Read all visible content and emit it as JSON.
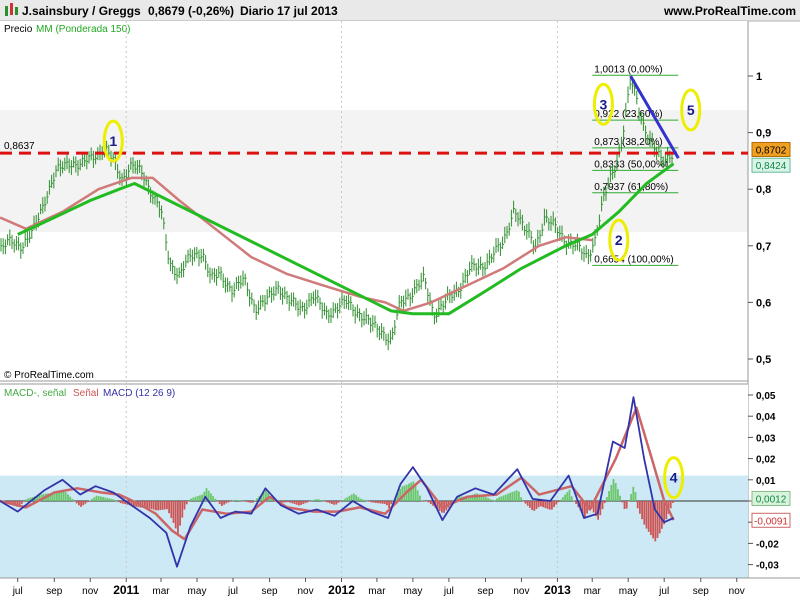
{
  "header": {
    "instrument": "J.sainsbury / Greggs",
    "price": "0,8679 (-0,26%)",
    "period": "Diario",
    "date": "17 jul 2013",
    "website": "www.ProRealTime.com"
  },
  "copyright": "© ProRealTime.com",
  "colors": {
    "price_bars": "#2f8f2f",
    "ma150": "#d07a7a",
    "ma_green": "#22bb22",
    "macd_line": "#3333aa",
    "signal_line": "#cc6666",
    "histogram_pos": "#6cc66c",
    "histogram_neg": "#cc5555",
    "resistance": "#dd1111",
    "trendline": "#3333cc",
    "ellipse": "#eeee00",
    "macd_band": "#cde9f6"
  },
  "chart_data": [
    {
      "type": "line",
      "panel": "price",
      "legend": {
        "prefix": "Precio",
        "ma_label": "MM (Ponderada 150)"
      },
      "x_labels": [
        "jul",
        "sep",
        "nov",
        "2011",
        "mar",
        "may",
        "jul",
        "sep",
        "nov",
        "2012",
        "mar",
        "may",
        "jul",
        "sep",
        "nov",
        "2013",
        "mar",
        "may",
        "jul",
        "sep",
        "nov"
      ],
      "y_ticks": [
        "1",
        "0,9",
        "0,8",
        "0,7",
        "0,6",
        "0,5"
      ],
      "ylim": [
        0.5,
        1.05
      ],
      "price_path": [
        [
          "2010-06-01",
          0.69
        ],
        [
          "2010-06-20",
          0.71
        ],
        [
          "2010-07-10",
          0.7
        ],
        [
          "2010-07-25",
          0.72
        ],
        [
          "2010-08-15",
          0.78
        ],
        [
          "2010-09-05",
          0.83
        ],
        [
          "2010-09-25",
          0.85
        ],
        [
          "2010-10-15",
          0.84
        ],
        [
          "2010-11-05",
          0.86
        ],
        [
          "2010-11-25",
          0.87
        ],
        [
          "2010-12-10",
          0.85
        ],
        [
          "2010-12-25",
          0.82
        ],
        [
          "2011-01-10",
          0.84
        ],
        [
          "2011-01-28",
          0.83
        ],
        [
          "2011-02-15",
          0.79
        ],
        [
          "2011-03-01",
          0.76
        ],
        [
          "2011-03-15",
          0.67
        ],
        [
          "2011-04-01",
          0.65
        ],
        [
          "2011-04-20",
          0.68
        ],
        [
          "2011-05-10",
          0.69
        ],
        [
          "2011-05-25",
          0.64
        ],
        [
          "2011-06-10",
          0.65
        ],
        [
          "2011-07-01",
          0.62
        ],
        [
          "2011-07-20",
          0.64
        ],
        [
          "2011-08-08",
          0.59
        ],
        [
          "2011-08-25",
          0.6
        ],
        [
          "2011-09-15",
          0.63
        ],
        [
          "2011-10-05",
          0.6
        ],
        [
          "2011-10-25",
          0.59
        ],
        [
          "2011-11-15",
          0.61
        ],
        [
          "2011-12-05",
          0.58
        ],
        [
          "2012-01-10",
          0.6
        ],
        [
          "2012-02-01",
          0.58
        ],
        [
          "2012-02-20",
          0.56
        ],
        [
          "2012-03-10",
          0.55
        ],
        [
          "2012-03-25",
          0.53
        ],
        [
          "2012-04-10",
          0.6
        ],
        [
          "2012-05-01",
          0.62
        ],
        [
          "2012-05-20",
          0.64
        ],
        [
          "2012-06-05",
          0.58
        ],
        [
          "2012-06-25",
          0.6
        ],
        [
          "2012-07-15",
          0.62
        ],
        [
          "2012-08-05",
          0.66
        ],
        [
          "2012-08-25",
          0.66
        ],
        [
          "2012-09-15",
          0.69
        ],
        [
          "2012-10-01",
          0.7
        ],
        [
          "2012-10-20",
          0.77
        ],
        [
          "2012-11-05",
          0.73
        ],
        [
          "2012-11-25",
          0.7
        ],
        [
          "2012-12-10",
          0.75
        ],
        [
          "2012-12-30",
          0.73
        ],
        [
          "2013-01-15",
          0.71
        ],
        [
          "2013-02-01",
          0.7
        ],
        [
          "2013-02-20",
          0.68
        ],
        [
          "2013-03-05",
          0.71
        ],
        [
          "2013-03-20",
          0.78
        ],
        [
          "2013-04-01",
          0.82
        ],
        [
          "2013-04-15",
          0.86
        ],
        [
          "2013-04-25",
          0.92
        ],
        [
          "2013-05-05",
          0.99
        ],
        [
          "2013-05-15",
          0.96
        ],
        [
          "2013-05-25",
          0.92
        ],
        [
          "2013-06-10",
          0.88
        ],
        [
          "2013-06-25",
          0.85
        ],
        [
          "2013-07-10",
          0.86
        ],
        [
          "2013-07-17",
          0.8679
        ]
      ],
      "ma150": [
        [
          "2010-06-01",
          0.75
        ],
        [
          "2010-07-15",
          0.73
        ],
        [
          "2010-09-15",
          0.76
        ],
        [
          "2010-11-15",
          0.8
        ],
        [
          "2011-01-10",
          0.82
        ],
        [
          "2011-02-15",
          0.82
        ],
        [
          "2011-04-01",
          0.78
        ],
        [
          "2011-06-01",
          0.73
        ],
        [
          "2011-08-01",
          0.68
        ],
        [
          "2011-10-01",
          0.65
        ],
        [
          "2011-12-01",
          0.63
        ],
        [
          "2012-02-01",
          0.61
        ],
        [
          "2012-03-15",
          0.6
        ],
        [
          "2012-04-15",
          0.585
        ],
        [
          "2012-06-01",
          0.6
        ],
        [
          "2012-08-01",
          0.63
        ],
        [
          "2012-10-01",
          0.66
        ],
        [
          "2012-12-01",
          0.7
        ],
        [
          "2013-01-15",
          0.715
        ],
        [
          "2013-03-01",
          0.71
        ]
      ],
      "ma_green": [
        [
          "2010-07-01",
          0.72
        ],
        [
          "2010-09-01",
          0.75
        ],
        [
          "2010-11-01",
          0.78
        ],
        [
          "2010-12-20",
          0.8
        ],
        [
          "2011-01-15",
          0.81
        ],
        [
          "2012-03-25",
          0.585
        ],
        [
          "2012-05-01",
          0.58
        ],
        [
          "2012-07-01",
          0.58
        ],
        [
          "2012-09-01",
          0.62
        ],
        [
          "2012-11-01",
          0.66
        ],
        [
          "2013-01-15",
          0.7
        ],
        [
          "2013-03-01",
          0.72
        ],
        [
          "2013-04-15",
          0.76
        ],
        [
          "2013-06-01",
          0.81
        ],
        [
          "2013-07-17",
          0.845
        ]
      ],
      "resistance_level": 0.8637,
      "resistance_label": "0,8637",
      "current_price_label": "0,8702",
      "ma_value_label": "0,8424",
      "trendline": [
        [
          "2013-05-05",
          1.0
        ],
        [
          "2013-07-25",
          0.855
        ]
      ],
      "fibonacci": {
        "x_start": "2013-03-01",
        "x_end": "2013-07-25",
        "levels": [
          {
            "value": 1.0013,
            "label": "1,0013 (0,00%)"
          },
          {
            "value": 0.922,
            "label": "0,922 (23,60%)"
          },
          {
            "value": 0.873,
            "label": "0,873 (38,20%)"
          },
          {
            "value": 0.8333,
            "label": "0,8333 (50,00%)"
          },
          {
            "value": 0.7937,
            "label": "0,7937 (61,80%)"
          },
          {
            "value": 0.6654,
            "label": "0,6654 (100,00%)"
          }
        ]
      },
      "annotations": [
        {
          "label": "1",
          "x": "2010-12-10",
          "y": 0.885
        },
        {
          "label": "3",
          "x": "2013-03-20",
          "y": 0.95
        },
        {
          "label": "5",
          "x": "2013-08-15",
          "y": 0.94
        },
        {
          "label": "2",
          "x": "2013-04-15",
          "y": 0.71
        }
      ]
    },
    {
      "type": "line",
      "panel": "macd",
      "legend": {
        "p1": "MACD-, señal",
        "p2": "Señal",
        "p3": "MACD (12 26 9)"
      },
      "y_ticks": [
        "0,05",
        "0,04",
        "0,03",
        "0,02",
        "0,01",
        "0",
        "-0,01",
        "-0,02",
        "-0,03"
      ],
      "ylim": [
        -0.036,
        0.054
      ],
      "current_values": {
        "macd": "0,0012",
        "signal": "-0,0091"
      },
      "macd_line": [
        [
          "2010-06-01",
          0.0
        ],
        [
          "2010-07-01",
          -0.005
        ],
        [
          "2010-08-15",
          0.005
        ],
        [
          "2010-09-15",
          0.01
        ],
        [
          "2010-10-15",
          0.003
        ],
        [
          "2010-11-10",
          0.007
        ],
        [
          "2010-12-10",
          0.004
        ],
        [
          "2011-01-10",
          -0.002
        ],
        [
          "2011-02-10",
          -0.008
        ],
        [
          "2011-03-10",
          -0.015
        ],
        [
          "2011-03-28",
          -0.031
        ],
        [
          "2011-04-20",
          -0.012
        ],
        [
          "2011-05-15",
          0.002
        ],
        [
          "2011-06-10",
          -0.008
        ],
        [
          "2011-07-05",
          -0.005
        ],
        [
          "2011-08-01",
          -0.006
        ],
        [
          "2011-08-25",
          0.006
        ],
        [
          "2011-09-20",
          -0.002
        ],
        [
          "2011-10-20",
          -0.006
        ],
        [
          "2011-11-20",
          -0.004
        ],
        [
          "2011-12-20",
          -0.007
        ],
        [
          "2012-01-20",
          0.0
        ],
        [
          "2012-02-20",
          -0.005
        ],
        [
          "2012-03-20",
          -0.008
        ],
        [
          "2012-04-10",
          0.008
        ],
        [
          "2012-05-01",
          0.016
        ],
        [
          "2012-05-25",
          0.006
        ],
        [
          "2012-06-20",
          -0.009
        ],
        [
          "2012-07-15",
          0.002
        ],
        [
          "2012-08-15",
          0.006
        ],
        [
          "2012-09-15",
          0.003
        ],
        [
          "2012-10-25",
          0.015
        ],
        [
          "2012-11-20",
          0.001
        ],
        [
          "2012-12-20",
          0.0
        ],
        [
          "2013-01-20",
          0.012
        ],
        [
          "2013-02-15",
          -0.008
        ],
        [
          "2013-03-10",
          -0.006
        ],
        [
          "2013-04-05",
          0.028
        ],
        [
          "2013-04-25",
          0.025
        ],
        [
          "2013-05-10",
          0.049
        ],
        [
          "2013-05-28",
          0.02
        ],
        [
          "2013-06-15",
          -0.004
        ],
        [
          "2013-07-01",
          -0.01
        ],
        [
          "2013-07-17",
          -0.008
        ]
      ],
      "signal_line": [
        [
          "2010-06-01",
          0.0
        ],
        [
          "2010-07-15",
          -0.003
        ],
        [
          "2010-09-01",
          0.004
        ],
        [
          "2010-10-10",
          0.006
        ],
        [
          "2010-11-20",
          0.004
        ],
        [
          "2010-12-20",
          0.003
        ],
        [
          "2011-01-20",
          -0.001
        ],
        [
          "2011-02-20",
          -0.006
        ],
        [
          "2011-03-20",
          -0.014
        ],
        [
          "2011-04-10",
          -0.018
        ],
        [
          "2011-05-10",
          -0.004
        ],
        [
          "2011-06-20",
          -0.006
        ],
        [
          "2011-08-01",
          -0.005
        ],
        [
          "2011-09-01",
          0.002
        ],
        [
          "2011-10-01",
          -0.003
        ],
        [
          "2011-11-15",
          -0.005
        ],
        [
          "2011-12-25",
          -0.005
        ],
        [
          "2012-02-01",
          -0.003
        ],
        [
          "2012-03-15",
          -0.006
        ],
        [
          "2012-04-20",
          0.004
        ],
        [
          "2012-05-15",
          0.01
        ],
        [
          "2012-06-20",
          -0.003
        ],
        [
          "2012-08-01",
          0.002
        ],
        [
          "2012-09-20",
          0.003
        ],
        [
          "2012-11-01",
          0.011
        ],
        [
          "2012-12-01",
          0.003
        ],
        [
          "2013-01-25",
          0.007
        ],
        [
          "2013-02-25",
          -0.004
        ],
        [
          "2013-04-10",
          0.02
        ],
        [
          "2013-05-15",
          0.044
        ],
        [
          "2013-06-10",
          0.02
        ],
        [
          "2013-07-01",
          0.0
        ],
        [
          "2013-07-17",
          -0.009
        ]
      ]
    }
  ]
}
